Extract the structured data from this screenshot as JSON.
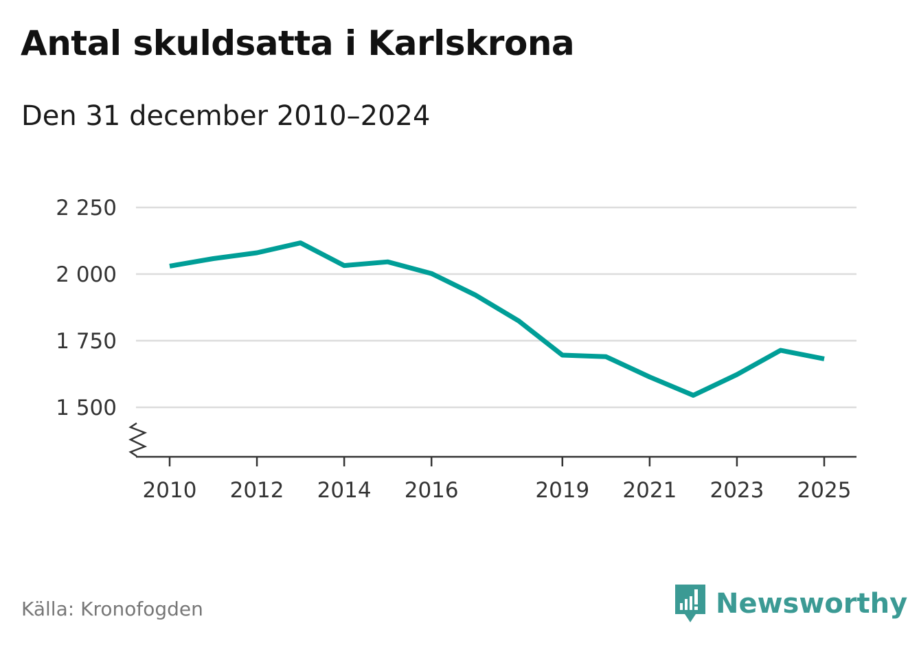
{
  "title": "Antal skuldsatta i Karlskrona",
  "subtitle": "Den 31 december 2010–2024",
  "source": "Källa: Kronofogden",
  "brand": {
    "name": "Newsworthy",
    "color": "#3b9a94",
    "icon": "newsworthy-logo-icon"
  },
  "chart_data": {
    "type": "line",
    "title": "Antal skuldsatta i Karlskrona",
    "subtitle": "Den 31 december 2010–2024",
    "xlabel": "",
    "ylabel": "",
    "xlim": [
      2010,
      2025
    ],
    "ylim": [
      1500,
      2250
    ],
    "axis_break": true,
    "grid": true,
    "x_ticks": [
      2010,
      2012,
      2014,
      2016,
      2019,
      2021,
      2023,
      2025
    ],
    "x_tick_labels": [
      "2010",
      "2012",
      "2014",
      "2016",
      "2019",
      "2021",
      "2023",
      "2025"
    ],
    "y_ticks": [
      1500,
      1750,
      2000,
      2250
    ],
    "y_tick_labels": [
      "1 500",
      "1 750",
      "2 000",
      "2 250"
    ],
    "line_color": "#009e97",
    "series": [
      {
        "name": "Antal skuldsatta",
        "x": [
          2010,
          2011,
          2012,
          2013,
          2014,
          2015,
          2016,
          2017,
          2018,
          2019,
          2020,
          2021,
          2022,
          2023,
          2024,
          2025
        ],
        "values": [
          2030,
          2058,
          2080,
          2117,
          2032,
          2046,
          2002,
          1922,
          1824,
          1696,
          1690,
          1614,
          1545,
          1623,
          1714,
          1682
        ]
      }
    ]
  }
}
